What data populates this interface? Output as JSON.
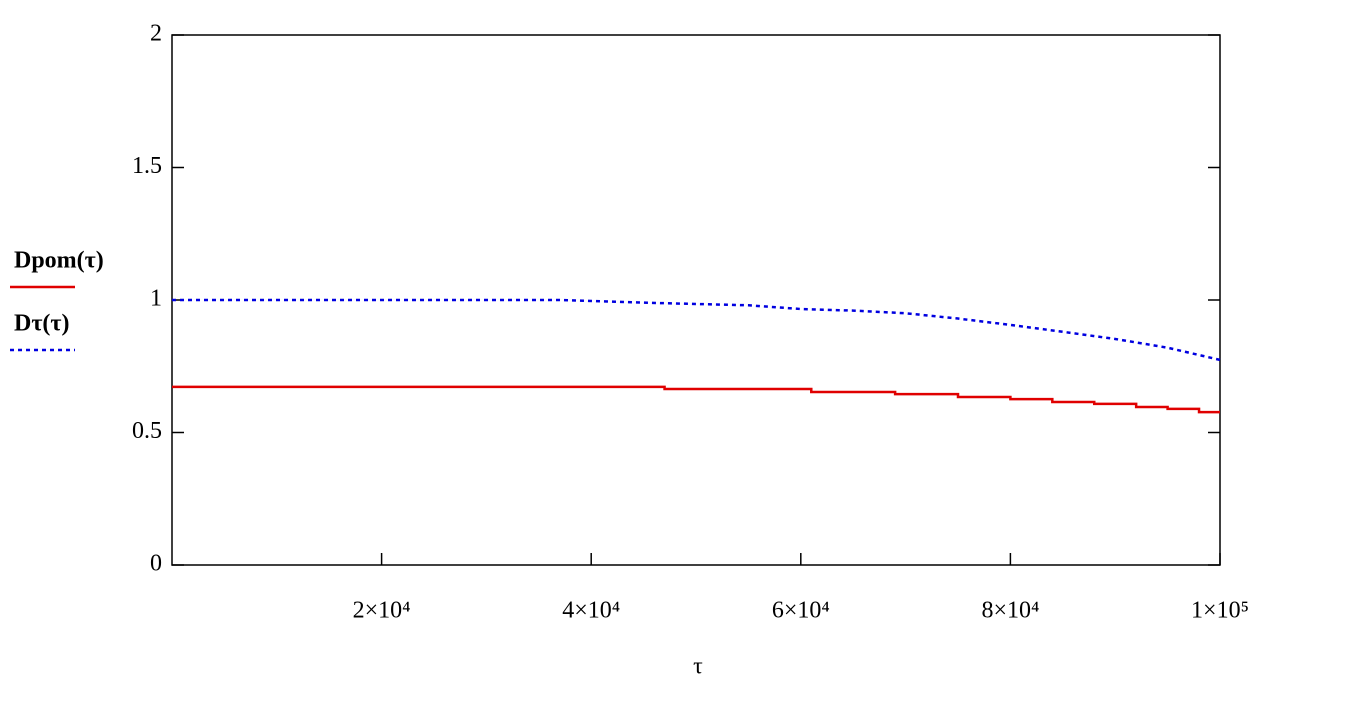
{
  "chart_data": {
    "type": "line",
    "x_label": "τ",
    "xlim": [
      0,
      100000
    ],
    "xticks": [
      {
        "value": 20000,
        "label": "2×10⁴"
      },
      {
        "value": 40000,
        "label": "4×10⁴"
      },
      {
        "value": 60000,
        "label": "6×10⁴"
      },
      {
        "value": 80000,
        "label": "8×10⁴"
      },
      {
        "value": 100000,
        "label": "1×10⁵"
      }
    ],
    "ylim": [
      0,
      2
    ],
    "yticks": [
      0,
      0.5,
      1,
      1.5,
      2
    ],
    "series": [
      {
        "name": "Dpom(τ)",
        "color": "#e00000",
        "dash": "solid",
        "x": [
          0,
          47000,
          47000,
          61000,
          61000,
          69000,
          69000,
          75000,
          75000,
          80000,
          80000,
          84000,
          84000,
          88000,
          88000,
          92000,
          92000,
          95000,
          95000,
          98000,
          98000,
          100000
        ],
        "values": [
          0.672,
          0.672,
          0.664,
          0.664,
          0.653,
          0.653,
          0.645,
          0.645,
          0.634,
          0.634,
          0.626,
          0.626,
          0.615,
          0.615,
          0.608,
          0.608,
          0.596,
          0.596,
          0.589,
          0.589,
          0.577,
          0.577
        ]
      },
      {
        "name": "Dτ(τ)",
        "color": "#0000e0",
        "dash": "dotted",
        "x": [
          0,
          37000,
          45000,
          55000,
          60000,
          65000,
          70000,
          75000,
          80000,
          85000,
          90000,
          95000,
          100000
        ],
        "values": [
          1.0,
          1.0,
          0.99,
          0.98,
          0.966,
          0.96,
          0.95,
          0.93,
          0.906,
          0.88,
          0.853,
          0.82,
          0.774
        ]
      }
    ]
  }
}
